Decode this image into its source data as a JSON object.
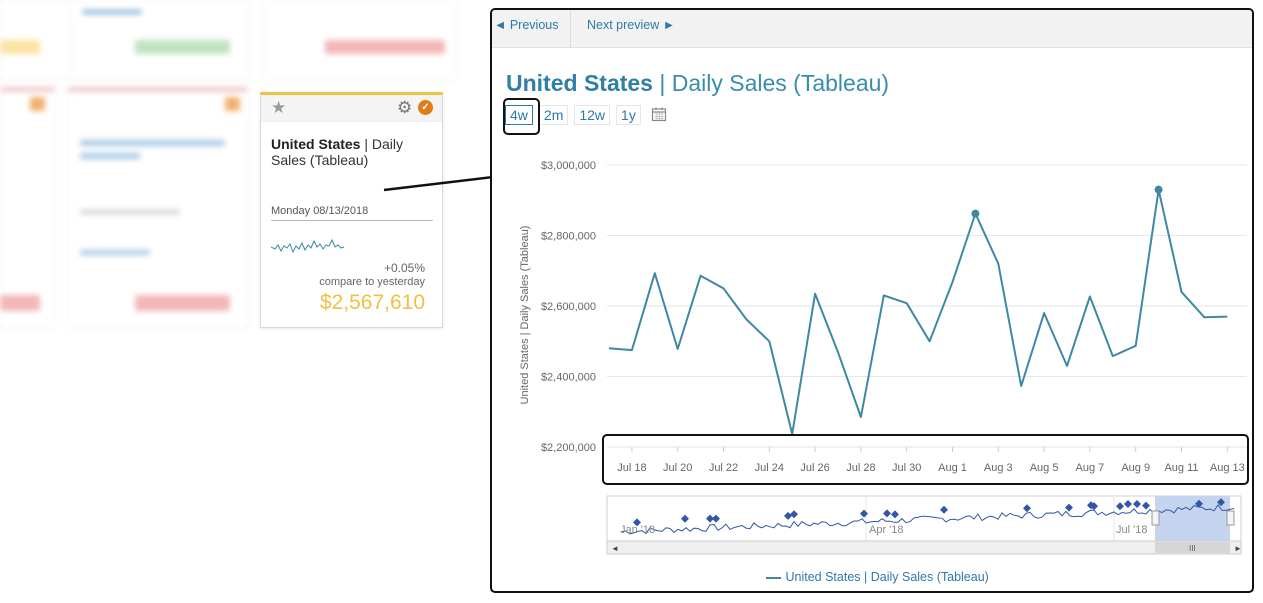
{
  "tile": {
    "title_bold": "United States",
    "title_rest": " | Daily Sales (Tableau)",
    "date": "Monday 08/13/2018",
    "change": "+0.05%",
    "compare_text": "compare to yesterday",
    "value": "$2,567,610",
    "star_icon": "star-icon",
    "gear_icon": "gear-icon",
    "badge_icon": "certified-badge-icon"
  },
  "preview": {
    "prev_label": "◄ Previous",
    "next_label": "Next preview ►",
    "title_bold": "United States",
    "title_rest": " | Daily Sales (Tableau)",
    "ranges": [
      "4w",
      "2m",
      "12w",
      "1y"
    ],
    "active_range": "4w",
    "legend_label": "United States | Daily Sales (Tableau)"
  },
  "chart_data": {
    "type": "line",
    "ylabel": "United States | Daily Sales (Tableau)",
    "ylim": [
      2200000,
      3000000
    ],
    "y_ticks": [
      "$3,000,000",
      "$2,800,000",
      "$2,600,000",
      "$2,400,000",
      "$2,200,000"
    ],
    "x_ticks": [
      "Jul 18",
      "Jul 20",
      "Jul 22",
      "Jul 24",
      "Jul 26",
      "Jul 28",
      "Jul 30",
      "Aug 1",
      "Aug 3",
      "Aug 5",
      "Aug 7",
      "Aug 9",
      "Aug 11",
      "Aug 13"
    ],
    "series": [
      {
        "name": "United States | Daily Sales (Tableau)",
        "x": [
          "Jul 17",
          "Jul 18",
          "Jul 19",
          "Jul 20",
          "Jul 21",
          "Jul 22",
          "Jul 23",
          "Jul 24",
          "Jul 25",
          "Jul 26",
          "Jul 27",
          "Jul 28",
          "Jul 29",
          "Jul 30",
          "Jul 31",
          "Aug 1",
          "Aug 2",
          "Aug 3",
          "Aug 4",
          "Aug 5",
          "Aug 6",
          "Aug 7",
          "Aug 8",
          "Aug 9",
          "Aug 10",
          "Aug 11",
          "Aug 12",
          "Aug 13"
        ],
        "values": [
          2480000,
          2475000,
          2693000,
          2478000,
          2686000,
          2650000,
          2562000,
          2500000,
          2237000,
          2635000,
          2469000,
          2285000,
          2630000,
          2608000,
          2500000,
          2668000,
          2862000,
          2720000,
          2373000,
          2580000,
          2430000,
          2627000,
          2458000,
          2487000,
          2930000,
          2640000,
          2568000,
          2570000
        ],
        "markers_at": [
          "Aug 2",
          "Aug 10"
        ],
        "color": "#3f88a4"
      }
    ],
    "navigator": {
      "labels": [
        "Jan '18",
        "Apr '18",
        "Jul '18"
      ],
      "selected_range": "4w"
    }
  }
}
